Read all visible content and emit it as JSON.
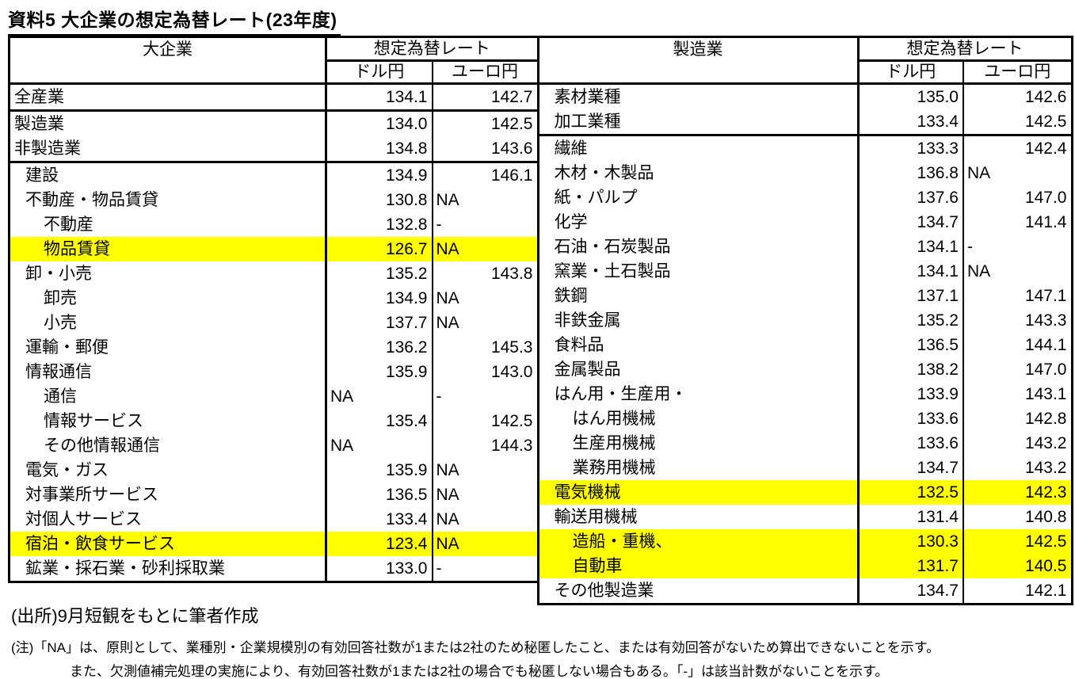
{
  "title": "資料5 大企業の想定為替レート(23年度)",
  "colors": {
    "highlight": "#ffff00",
    "text": "#000000",
    "border": "#000000",
    "background": "#ffffff"
  },
  "left_table": {
    "header": {
      "group": "大企業",
      "rate": "想定為替レート",
      "usd": "ドル円",
      "eur": "ユーロ円"
    },
    "rows": [
      {
        "label": "全産業",
        "indent": 0,
        "usd": "134.1",
        "eur": "142.7",
        "highlight": false,
        "section_end": true
      },
      {
        "label": "製造業",
        "indent": 0,
        "usd": "134.0",
        "eur": "142.5",
        "highlight": false,
        "section_end": false
      },
      {
        "label": "非製造業",
        "indent": 0,
        "usd": "134.8",
        "eur": "143.6",
        "highlight": false,
        "section_end": true
      },
      {
        "label": "建設",
        "indent": 1,
        "usd": "134.9",
        "eur": "146.1",
        "highlight": false,
        "section_end": false
      },
      {
        "label": "不動産・物品賃貸",
        "indent": 1,
        "usd": "130.8",
        "eur": "NA",
        "highlight": false,
        "section_end": false
      },
      {
        "label": "不動産",
        "indent": 2,
        "usd": "132.8",
        "eur": "-",
        "highlight": false,
        "section_end": false
      },
      {
        "label": "物品賃貸",
        "indent": 2,
        "usd": "126.7",
        "eur": "NA",
        "highlight": true,
        "section_end": false
      },
      {
        "label": "卸・小売",
        "indent": 1,
        "usd": "135.2",
        "eur": "143.8",
        "highlight": false,
        "section_end": false
      },
      {
        "label": "卸売",
        "indent": 2,
        "usd": "134.9",
        "eur": "NA",
        "highlight": false,
        "section_end": false
      },
      {
        "label": "小売",
        "indent": 2,
        "usd": "137.7",
        "eur": "NA",
        "highlight": false,
        "section_end": false
      },
      {
        "label": "運輸・郵便",
        "indent": 1,
        "usd": "136.2",
        "eur": "145.3",
        "highlight": false,
        "section_end": false
      },
      {
        "label": "情報通信",
        "indent": 1,
        "usd": "135.9",
        "eur": "143.0",
        "highlight": false,
        "section_end": false
      },
      {
        "label": "通信",
        "indent": 2,
        "usd": "NA",
        "eur": "-",
        "highlight": false,
        "section_end": false
      },
      {
        "label": "情報サービス",
        "indent": 2,
        "usd": "135.4",
        "eur": "142.5",
        "highlight": false,
        "section_end": false
      },
      {
        "label": "その他情報通信",
        "indent": 2,
        "usd": "NA",
        "eur": "144.3",
        "highlight": false,
        "section_end": false
      },
      {
        "label": "電気・ガス",
        "indent": 1,
        "usd": "135.9",
        "eur": "NA",
        "highlight": false,
        "section_end": false
      },
      {
        "label": "対事業所サービス",
        "indent": 1,
        "usd": "136.5",
        "eur": "NA",
        "highlight": false,
        "section_end": false
      },
      {
        "label": "対個人サービス",
        "indent": 1,
        "usd": "133.4",
        "eur": "NA",
        "highlight": false,
        "section_end": false
      },
      {
        "label": "宿泊・飲食サービス",
        "indent": 1,
        "usd": "123.4",
        "eur": "NA",
        "highlight": true,
        "section_end": false
      },
      {
        "label": "鉱業・採石業・砂利採取業",
        "indent": 1,
        "usd": "133.0",
        "eur": "-",
        "highlight": false,
        "section_end": false
      }
    ]
  },
  "right_table": {
    "header": {
      "group": "製造業",
      "rate": "想定為替レート",
      "usd": "ドル円",
      "eur": "ユーロ円"
    },
    "rows": [
      {
        "label": "素材業種",
        "indent": 1,
        "usd": "135.0",
        "eur": "142.6",
        "highlight": false,
        "section_end": false
      },
      {
        "label": "加工業種",
        "indent": 1,
        "usd": "133.4",
        "eur": "142.5",
        "highlight": false,
        "section_end": true
      },
      {
        "label": "繊維",
        "indent": 1,
        "usd": "133.3",
        "eur": "142.4",
        "highlight": false,
        "section_end": false
      },
      {
        "label": "木材・木製品",
        "indent": 1,
        "usd": "136.8",
        "eur": "NA",
        "highlight": false,
        "section_end": false
      },
      {
        "label": "紙・パルプ",
        "indent": 1,
        "usd": "137.6",
        "eur": "147.0",
        "highlight": false,
        "section_end": false
      },
      {
        "label": "化学",
        "indent": 1,
        "usd": "134.7",
        "eur": "141.4",
        "highlight": false,
        "section_end": false
      },
      {
        "label": "石油・石炭製品",
        "indent": 1,
        "usd": "134.1",
        "eur": "-",
        "highlight": false,
        "section_end": false
      },
      {
        "label": "窯業・土石製品",
        "indent": 1,
        "usd": "134.1",
        "eur": "NA",
        "highlight": false,
        "section_end": false
      },
      {
        "label": "鉄鋼",
        "indent": 1,
        "usd": "137.1",
        "eur": "147.1",
        "highlight": false,
        "section_end": false
      },
      {
        "label": "非鉄金属",
        "indent": 1,
        "usd": "135.2",
        "eur": "143.3",
        "highlight": false,
        "section_end": false
      },
      {
        "label": "食料品",
        "indent": 1,
        "usd": "136.5",
        "eur": "144.1",
        "highlight": false,
        "section_end": false
      },
      {
        "label": "金属製品",
        "indent": 1,
        "usd": "138.2",
        "eur": "147.0",
        "highlight": false,
        "section_end": false
      },
      {
        "label": "はん用・生産用・",
        "indent": 1,
        "usd": "133.9",
        "eur": "143.1",
        "highlight": false,
        "section_end": false
      },
      {
        "label": "はん用機械",
        "indent": 2,
        "usd": "133.6",
        "eur": "142.8",
        "highlight": false,
        "section_end": false
      },
      {
        "label": "生産用機械",
        "indent": 2,
        "usd": "133.6",
        "eur": "143.2",
        "highlight": false,
        "section_end": false
      },
      {
        "label": "業務用機械",
        "indent": 2,
        "usd": "134.7",
        "eur": "143.2",
        "highlight": false,
        "section_end": false
      },
      {
        "label": "電気機械",
        "indent": 1,
        "usd": "132.5",
        "eur": "142.3",
        "highlight": true,
        "section_end": false
      },
      {
        "label": "輸送用機械",
        "indent": 1,
        "usd": "131.4",
        "eur": "140.8",
        "highlight": false,
        "section_end": false
      },
      {
        "label": "造船・重機、",
        "indent": 2,
        "usd": "130.3",
        "eur": "142.5",
        "highlight": true,
        "section_end": false
      },
      {
        "label": "自動車",
        "indent": 2,
        "usd": "131.7",
        "eur": "140.5",
        "highlight": true,
        "section_end": false
      },
      {
        "label": "その他製造業",
        "indent": 1,
        "usd": "134.7",
        "eur": "142.1",
        "highlight": false,
        "section_end": false
      }
    ]
  },
  "source": "(出所)9月短観をもとに筆者作成",
  "notes": [
    "(注)「NA」は、原則として、業種別・企業規模別の有効回答社数が1または2社のため秘匿したこと、または有効回答がないため算出できないことを示す。",
    "また、欠測値補完処理の実施により、有効回答社数が1または2社の場合でも秘匿しない場合もある。「-」は該当計数がないことを示す。"
  ]
}
